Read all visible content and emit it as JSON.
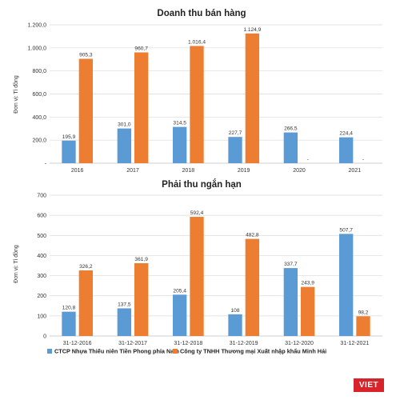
{
  "colors": {
    "series1": "#5b9bd5",
    "series2": "#ed7d31"
  },
  "legend": {
    "series1": "CTCP Nhựa Thiếu niên Tiền Phong phía Nam",
    "series2": "Công ty TNHH Thương mại Xuất nhập khẩu Minh Hải"
  },
  "logo": "VIET",
  "chart_data": [
    {
      "type": "bar",
      "title": "Doanh thu bán hàng",
      "ylabel": "Đơn vị: Tỉ đồng",
      "xlabel": "",
      "ylim": [
        0,
        1200
      ],
      "yticks": [
        {
          "value": 0,
          "label": "-"
        },
        {
          "value": 200,
          "label": "200,0"
        },
        {
          "value": 400,
          "label": "400,0"
        },
        {
          "value": 600,
          "label": "600,0"
        },
        {
          "value": 800,
          "label": "800,0"
        },
        {
          "value": 1000,
          "label": "1.000,0"
        },
        {
          "value": 1200,
          "label": "1.200,0"
        }
      ],
      "categories": [
        "2016",
        "2017",
        "2018",
        "2019",
        "2020",
        "2021"
      ],
      "series": [
        {
          "values": [
            195.9,
            301.0,
            314.5,
            227.7,
            266.5,
            224.4
          ],
          "labels": [
            "195,9",
            "301,0",
            "314,5",
            "227,7",
            "266,5",
            "224,4"
          ]
        },
        {
          "values": [
            905.3,
            960.7,
            1016.4,
            1124.9,
            0,
            0
          ],
          "labels": [
            "905,3",
            "960,7",
            "1.016,4",
            "1.124,9",
            "-",
            "-"
          ]
        }
      ],
      "grid": true,
      "legend": "none"
    },
    {
      "type": "bar",
      "title": "Phải thu ngắn hạn",
      "ylabel": "Đơn vị: Tỉ đồng",
      "xlabel": "",
      "ylim": [
        0,
        700
      ],
      "yticks": [
        {
          "value": 0,
          "label": "0"
        },
        {
          "value": 100,
          "label": "100"
        },
        {
          "value": 200,
          "label": "200"
        },
        {
          "value": 300,
          "label": "300"
        },
        {
          "value": 400,
          "label": "400"
        },
        {
          "value": 500,
          "label": "500"
        },
        {
          "value": 600,
          "label": "600"
        },
        {
          "value": 700,
          "label": "700"
        }
      ],
      "categories": [
        "31-12-2016",
        "31-12-2017",
        "31-12-2018",
        "31-12-2019",
        "31-12-2020",
        "31-12-2021"
      ],
      "series": [
        {
          "name": "CTCP Nhựa Thiếu niên Tiền Phong phía Nam",
          "values": [
            120.8,
            137.5,
            205.4,
            108,
            337.7,
            507.7
          ],
          "labels": [
            "120,8",
            "137,5",
            "205,4",
            "108",
            "337,7",
            "507,7"
          ]
        },
        {
          "name": "Công ty TNHH Thương mại Xuất nhập khẩu Minh Hải",
          "values": [
            326.2,
            361.9,
            592.4,
            482.8,
            243.9,
            98.2
          ],
          "labels": [
            "326,2",
            "361,9",
            "592,4",
            "482,8",
            "243,9",
            "98,2"
          ]
        }
      ],
      "grid": true,
      "legend": "bottom"
    }
  ]
}
